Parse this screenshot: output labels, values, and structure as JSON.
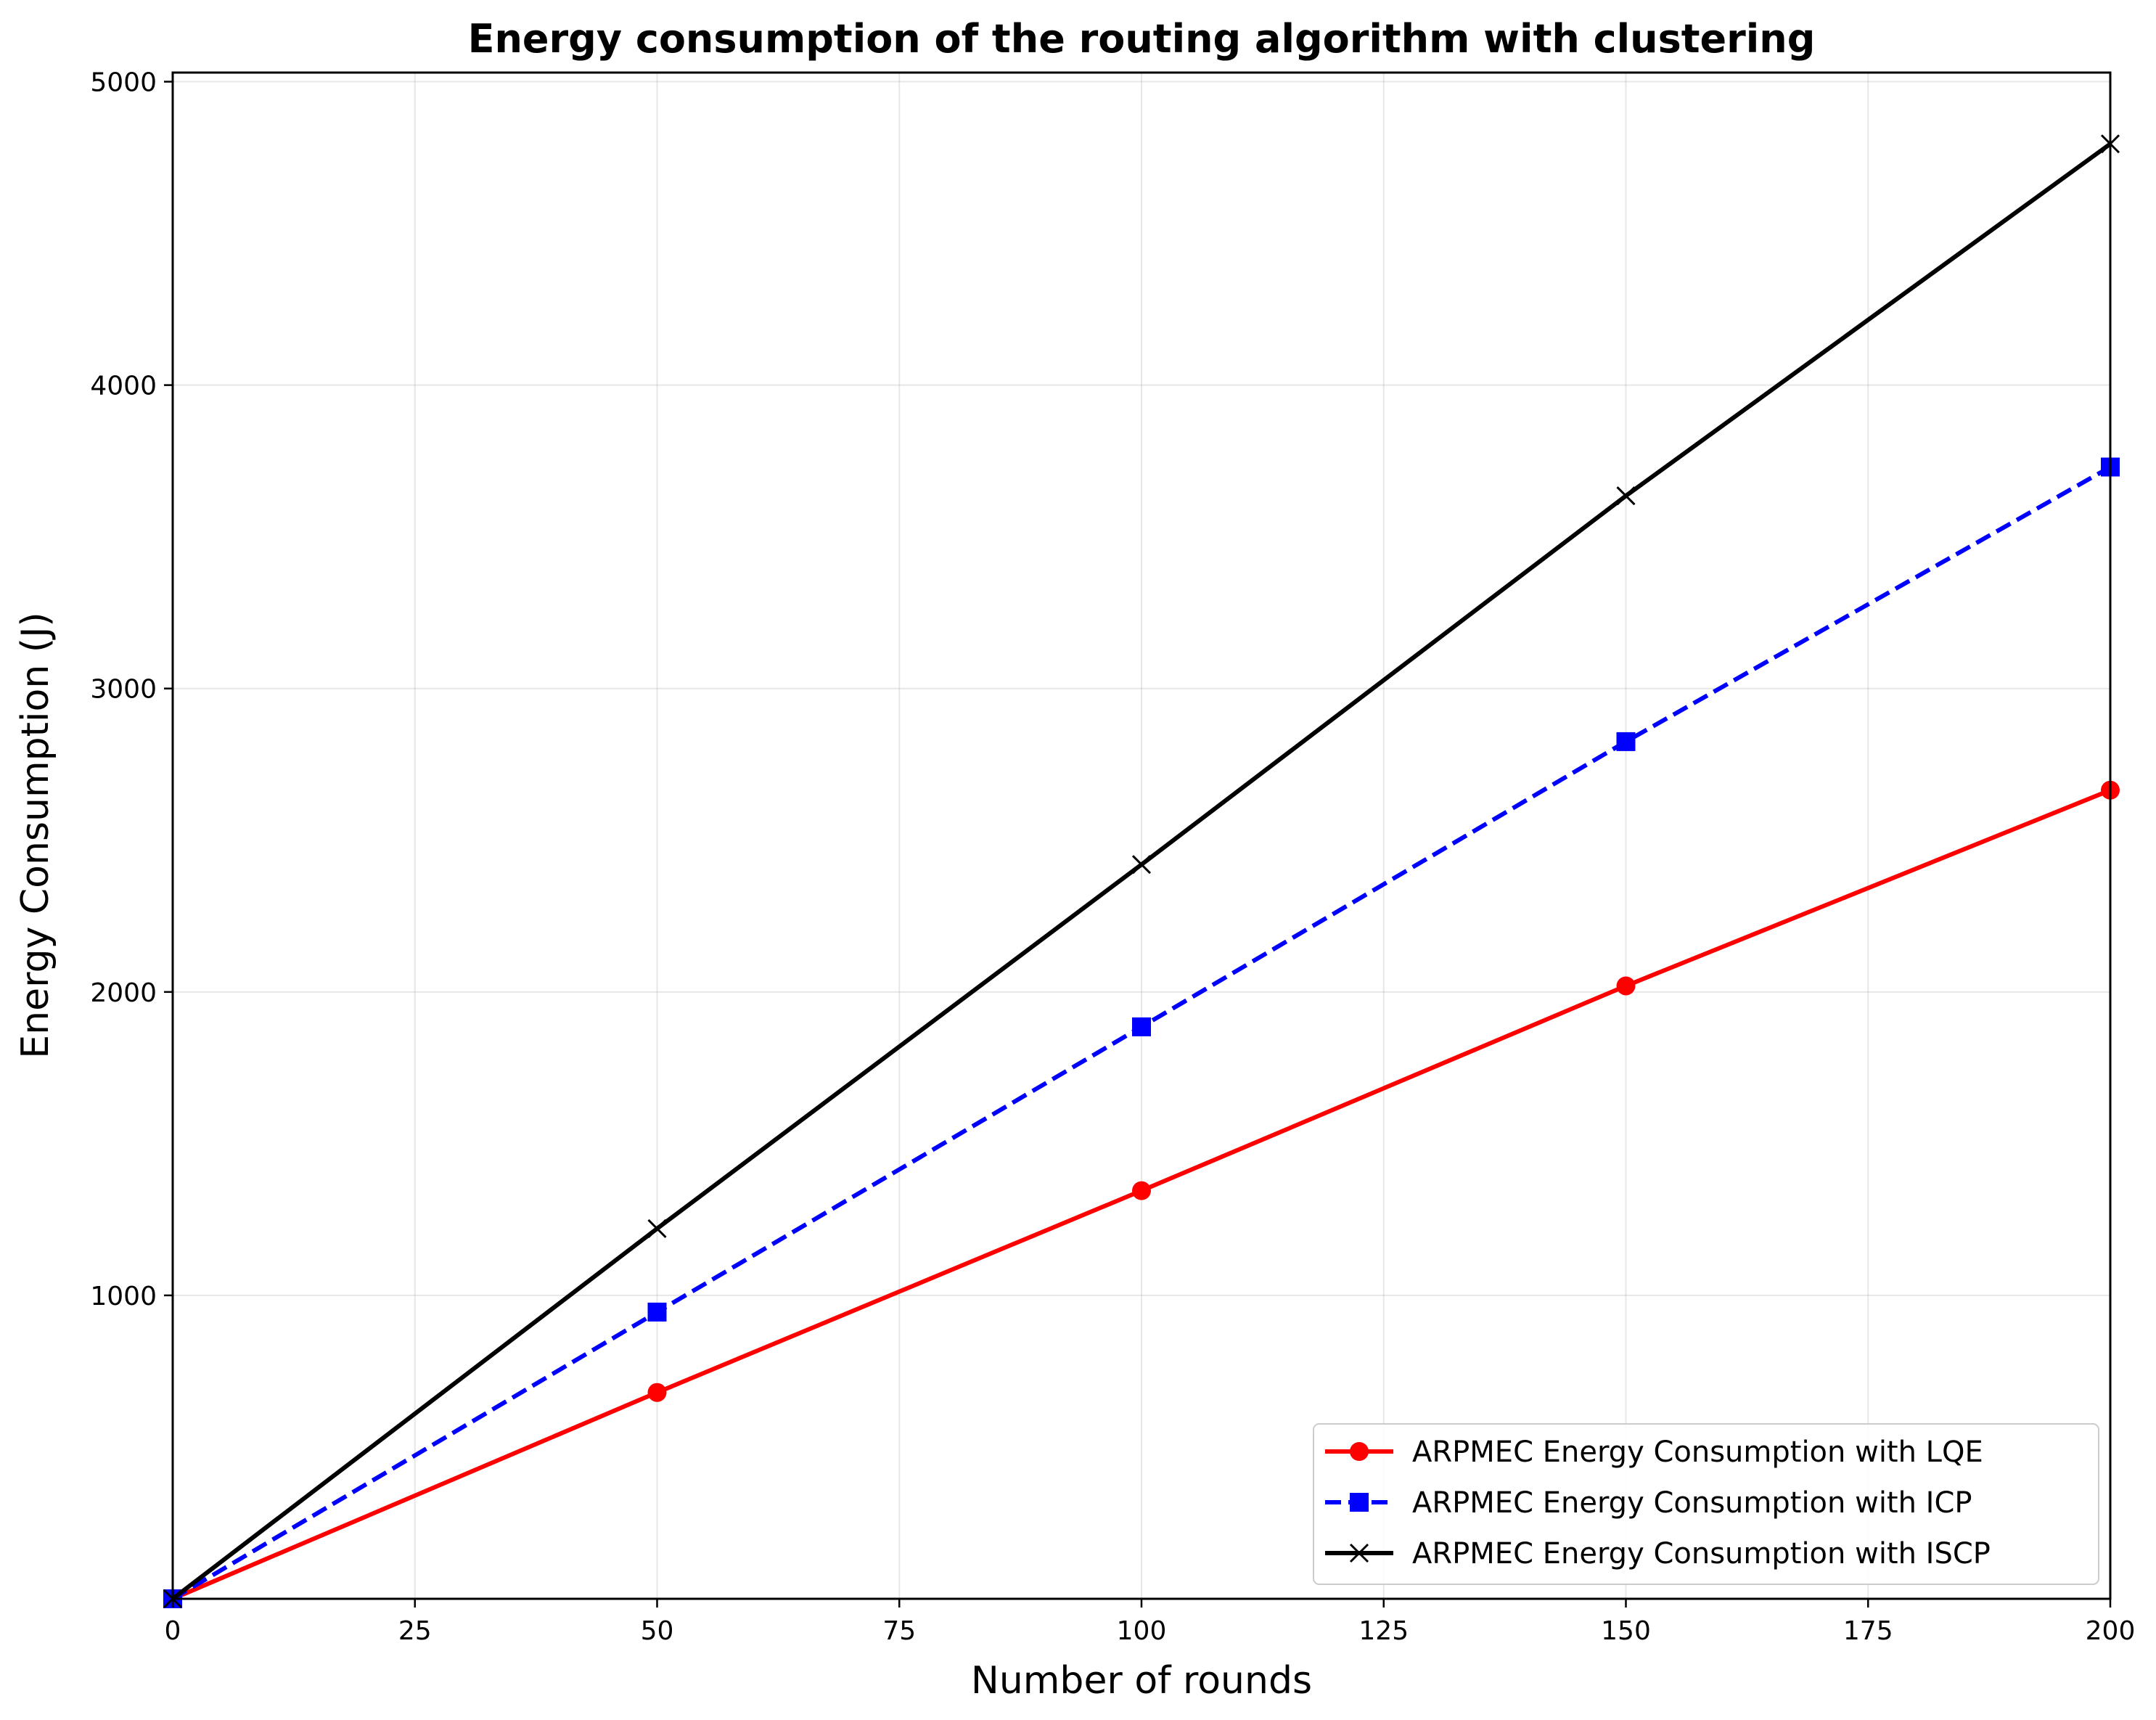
{
  "chart_data": {
    "type": "line",
    "title": "Energy consumption of the routing algorithm with clustering",
    "xlabel": "Number of rounds",
    "ylabel": "Energy Consumption (J)",
    "xlim": [
      0,
      200
    ],
    "ylim": [
      0,
      5030
    ],
    "xticks": [
      0,
      25,
      50,
      75,
      100,
      125,
      150,
      175,
      200
    ],
    "yticks": [
      1000,
      2000,
      3000,
      4000,
      5000
    ],
    "grid": true,
    "legend_position": "lower-right",
    "series": [
      {
        "name": "ARPMEC Energy Consumption with LQE",
        "color": "#ff0000",
        "marker": "circle",
        "linestyle": "solid",
        "x": [
          0,
          50,
          100,
          150,
          200
        ],
        "y": [
          0,
          680,
          1345,
          2020,
          2665
        ]
      },
      {
        "name": "ARPMEC Energy Consumption with ICP",
        "color": "#0000ff",
        "marker": "square",
        "linestyle": "dashed",
        "x": [
          0,
          50,
          100,
          150,
          200
        ],
        "y": [
          0,
          945,
          1885,
          2825,
          3730
        ]
      },
      {
        "name": "ARPMEC Energy Consumption with ISCP",
        "color": "#000000",
        "marker": "x",
        "linestyle": "solid",
        "x": [
          0,
          50,
          100,
          150,
          200
        ],
        "y": [
          0,
          1220,
          2420,
          3635,
          4795
        ]
      }
    ]
  }
}
